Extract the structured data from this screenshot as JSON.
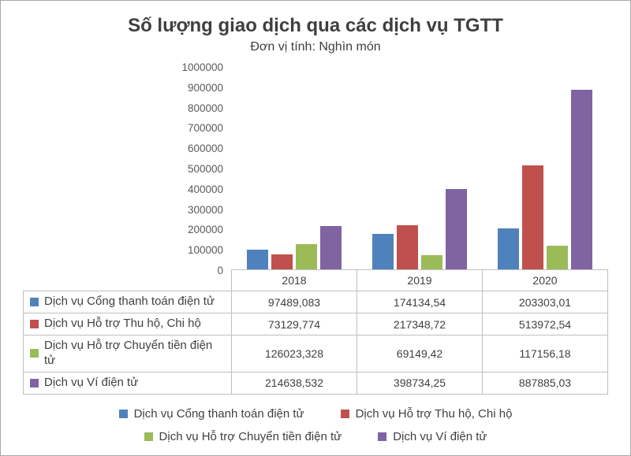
{
  "chart_data": {
    "type": "bar",
    "title": "Số lượng giao dịch qua các dịch vụ TGTT",
    "subtitle": "Đơn vị tính: Nghìn món",
    "categories": [
      "2018",
      "2019",
      "2020"
    ],
    "series": [
      {
        "name": "Dịch vụ Cổng thanh toán điện tử",
        "color": "#4F81BD",
        "values": [
          97489.083,
          174134.54,
          203303.01
        ],
        "labels": [
          "97489,083",
          "174134,54",
          "203303,01"
        ]
      },
      {
        "name": "Dịch vụ Hỗ trợ Thu hộ, Chi hộ",
        "color": "#C0504D",
        "values": [
          73129.774,
          217348.72,
          513972.54
        ],
        "labels": [
          "73129,774",
          "217348,72",
          "513972,54"
        ]
      },
      {
        "name": "Dịch vụ Hỗ trợ Chuyển tiền điện tử",
        "color": "#9BBB59",
        "values": [
          126023.328,
          69149.42,
          117156.18
        ],
        "labels": [
          "126023,328",
          "69149,42",
          "117156,18"
        ]
      },
      {
        "name": "Dịch vụ Ví điện tử",
        "color": "#8064A2",
        "values": [
          214638.532,
          398734.25,
          887885.03
        ],
        "labels": [
          "214638,532",
          "398734,25",
          "887885,03"
        ]
      }
    ],
    "ylim": [
      0,
      1000000
    ],
    "ytick_step": 100000,
    "yticks": [
      "0",
      "100000",
      "200000",
      "300000",
      "400000",
      "500000",
      "600000",
      "700000",
      "800000",
      "900000",
      "1000000"
    ],
    "grid": false,
    "data_table": true,
    "legend_position": "bottom",
    "legend_rows": [
      [
        0,
        1
      ],
      [
        2,
        3
      ]
    ],
    "xlabel": "",
    "ylabel": ""
  }
}
